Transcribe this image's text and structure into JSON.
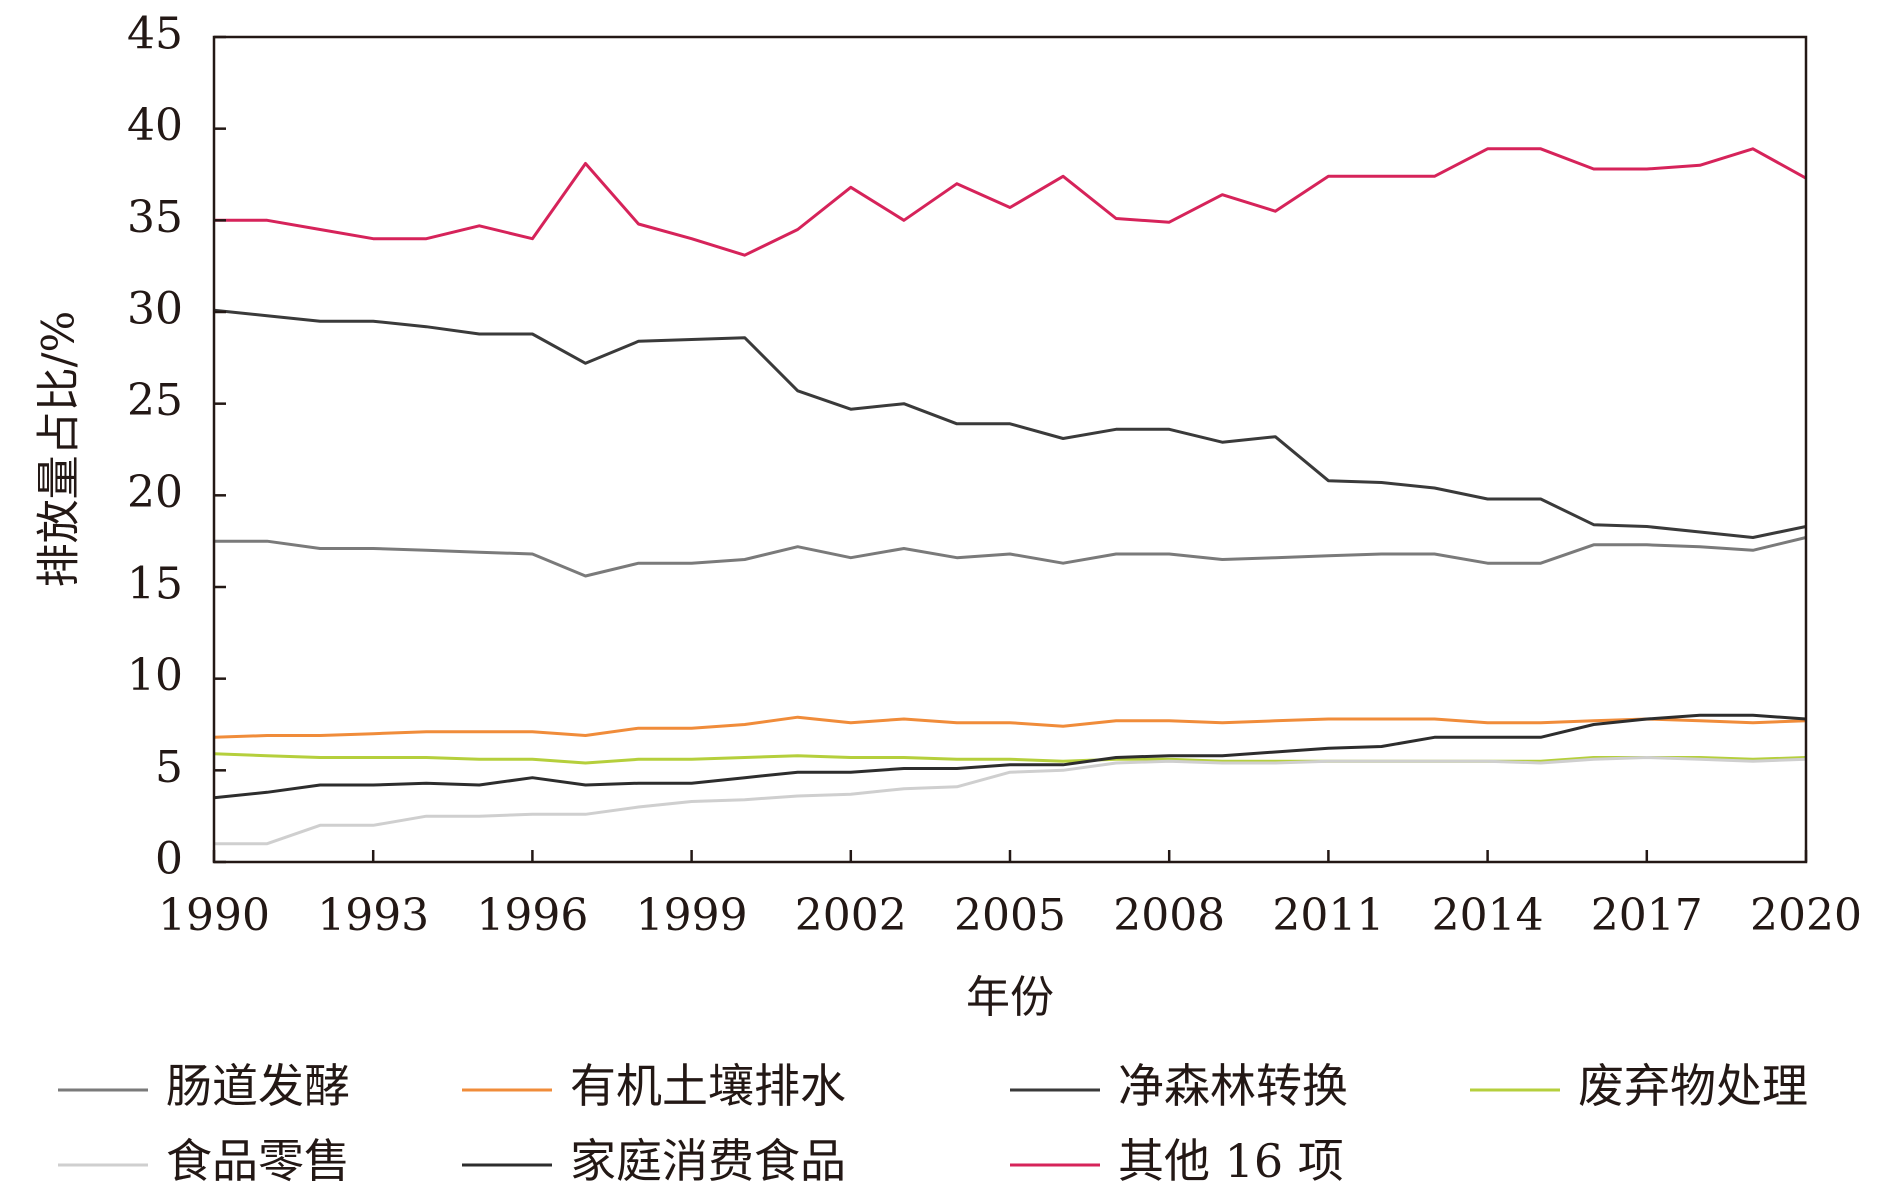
{
  "chart_data": {
    "type": "line",
    "title": "",
    "xlabel": "年份",
    "ylabel": "排放量占比/%",
    "xlim": [
      1990,
      2020
    ],
    "ylim": [
      0,
      45
    ],
    "xticks": [
      1990,
      1993,
      1996,
      1999,
      2002,
      2005,
      2008,
      2011,
      2014,
      2017,
      2020
    ],
    "yticks": [
      0,
      5,
      10,
      15,
      20,
      25,
      30,
      35,
      40,
      45
    ],
    "grid": false,
    "legend_position": "bottom",
    "x": [
      1990,
      1991,
      1992,
      1993,
      1994,
      1995,
      1996,
      1997,
      1998,
      1999,
      2000,
      2001,
      2002,
      2003,
      2004,
      2005,
      2006,
      2007,
      2008,
      2009,
      2010,
      2011,
      2012,
      2013,
      2014,
      2015,
      2016,
      2017,
      2018,
      2019,
      2020
    ],
    "series": [
      {
        "name": "肠道发酵",
        "color": "#7a7a7a",
        "values": [
          17.5,
          17.5,
          17.1,
          17.1,
          17.0,
          16.9,
          16.8,
          15.6,
          16.3,
          16.3,
          16.5,
          17.2,
          16.6,
          17.1,
          16.6,
          16.8,
          16.3,
          16.8,
          16.8,
          16.5,
          16.6,
          16.7,
          16.8,
          16.8,
          16.3,
          16.3,
          17.3,
          17.3,
          17.2,
          17.0,
          17.7
        ]
      },
      {
        "name": "有机土壤排水",
        "color": "#f08c3a",
        "values": [
          6.8,
          6.9,
          6.9,
          7.0,
          7.1,
          7.1,
          7.1,
          6.9,
          7.3,
          7.3,
          7.5,
          7.9,
          7.6,
          7.8,
          7.6,
          7.6,
          7.4,
          7.7,
          7.7,
          7.6,
          7.7,
          7.8,
          7.8,
          7.8,
          7.6,
          7.6,
          7.7,
          7.8,
          7.7,
          7.6,
          7.7
        ]
      },
      {
        "name": "净森林转换",
        "color": "#3a3a3a",
        "values": [
          30.1,
          29.8,
          29.5,
          29.5,
          29.2,
          28.8,
          28.8,
          27.2,
          28.4,
          28.5,
          28.6,
          25.7,
          24.7,
          25.0,
          23.9,
          23.9,
          23.1,
          23.6,
          23.6,
          22.9,
          23.2,
          20.8,
          20.7,
          20.4,
          19.8,
          19.8,
          18.4,
          18.3,
          18.0,
          17.7,
          18.3
        ]
      },
      {
        "name": "废弃物处理",
        "color": "#b5cf3c",
        "values": [
          5.9,
          5.8,
          5.7,
          5.7,
          5.7,
          5.6,
          5.6,
          5.4,
          5.6,
          5.6,
          5.7,
          5.8,
          5.7,
          5.7,
          5.6,
          5.6,
          5.5,
          5.6,
          5.6,
          5.5,
          5.5,
          5.5,
          5.5,
          5.5,
          5.5,
          5.5,
          5.7,
          5.7,
          5.7,
          5.6,
          5.7
        ]
      },
      {
        "name": "食品零售",
        "color": "#cfcfcf",
        "values": [
          1.0,
          1.0,
          2.0,
          2.0,
          2.5,
          2.5,
          2.6,
          2.6,
          3.0,
          3.3,
          3.4,
          3.6,
          3.7,
          4.0,
          4.1,
          4.9,
          5.0,
          5.4,
          5.5,
          5.4,
          5.4,
          5.5,
          5.5,
          5.5,
          5.5,
          5.4,
          5.6,
          5.7,
          5.6,
          5.5,
          5.6
        ]
      },
      {
        "name": "家庭消费食品",
        "color": "#2d2d2d",
        "values": [
          3.5,
          3.8,
          4.2,
          4.2,
          4.3,
          4.2,
          4.6,
          4.2,
          4.3,
          4.3,
          4.6,
          4.9,
          4.9,
          5.1,
          5.1,
          5.3,
          5.3,
          5.7,
          5.8,
          5.8,
          6.0,
          6.2,
          6.3,
          6.8,
          6.8,
          6.8,
          7.5,
          7.8,
          8.0,
          8.0,
          7.8
        ]
      },
      {
        "name": "其他 16 项",
        "color": "#d6235a",
        "values": [
          35.0,
          35.0,
          34.5,
          34.0,
          34.0,
          34.7,
          34.0,
          38.1,
          34.8,
          34.0,
          33.1,
          34.5,
          36.8,
          35.0,
          37.0,
          35.7,
          37.4,
          35.1,
          34.9,
          36.4,
          35.5,
          37.4,
          37.4,
          37.4,
          38.9,
          38.9,
          37.8,
          37.8,
          38.0,
          38.9,
          37.3
        ]
      }
    ]
  }
}
